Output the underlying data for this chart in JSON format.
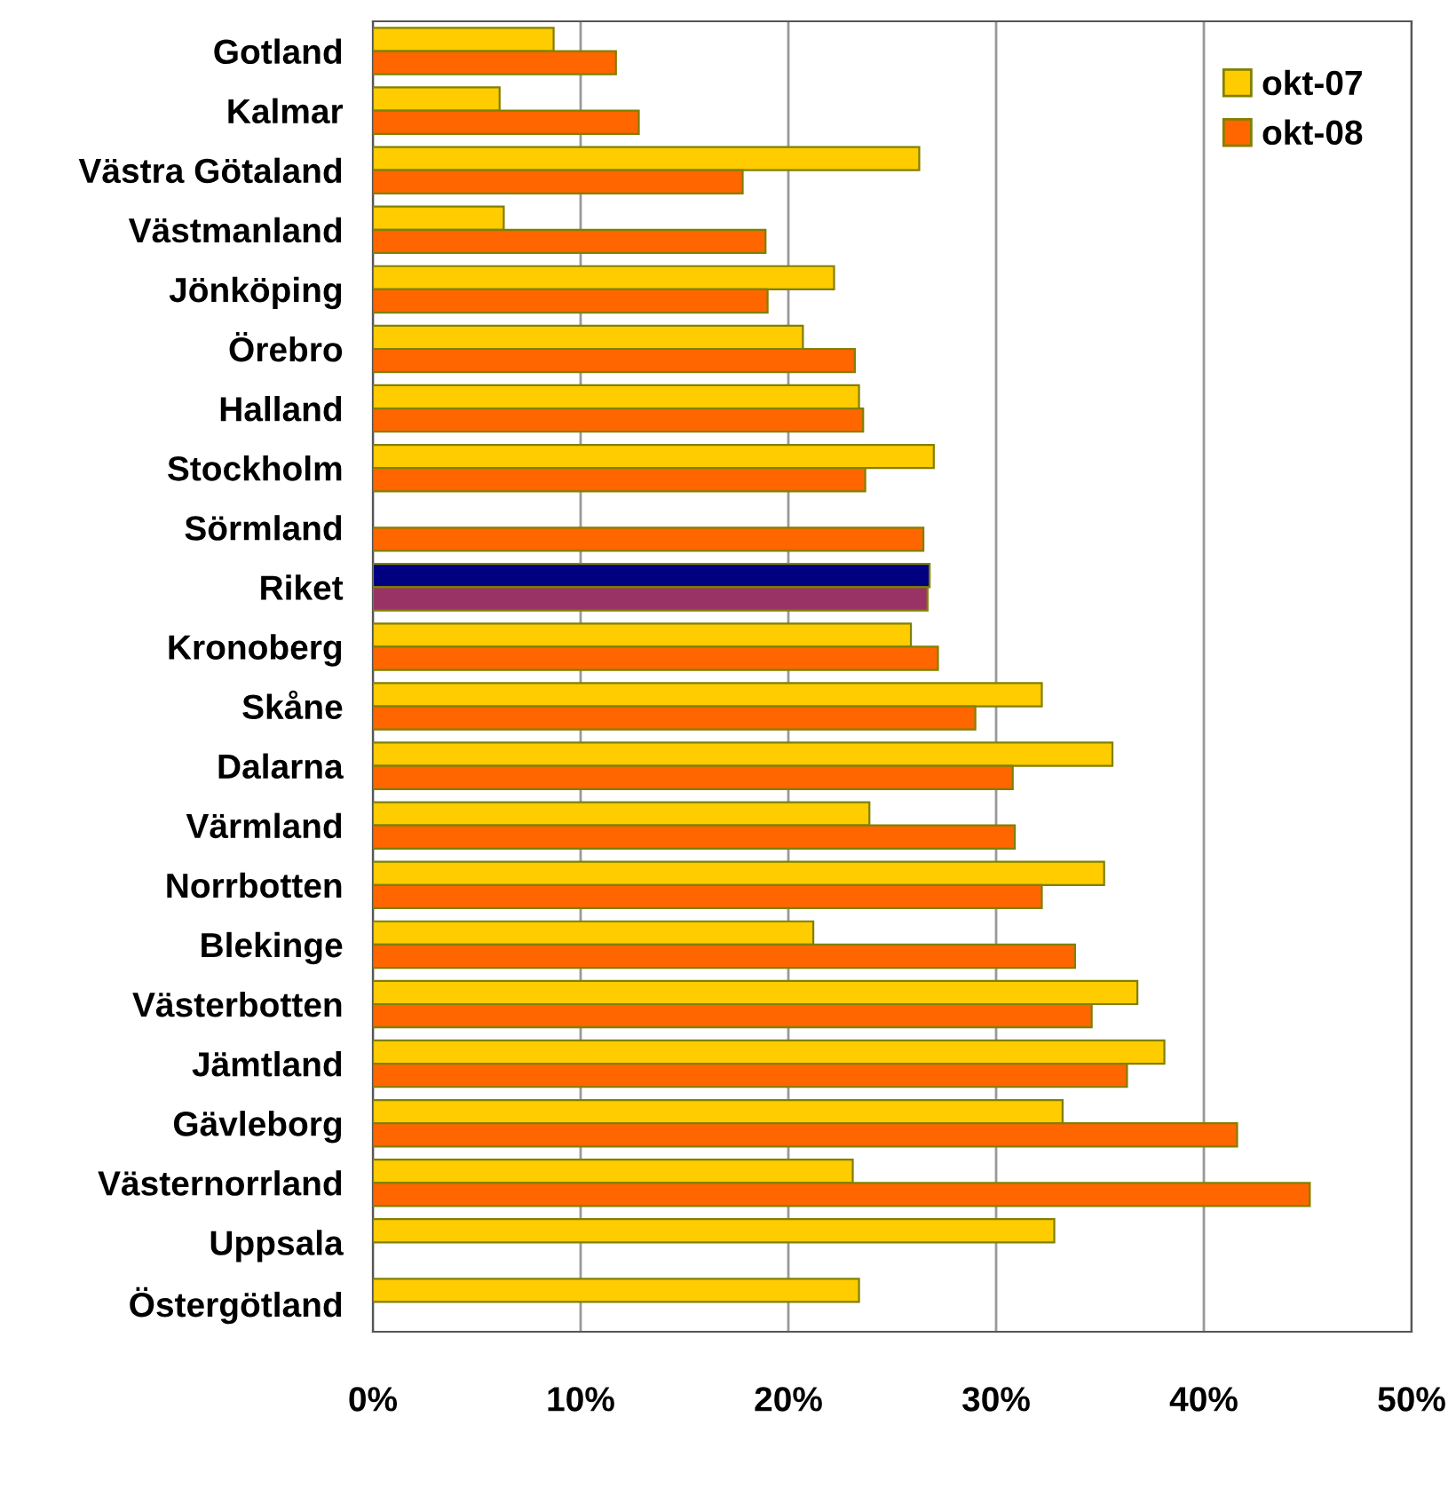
{
  "chart_data": {
    "type": "bar",
    "orientation": "horizontal",
    "categories": [
      "Gotland",
      "Kalmar",
      "Västra Götaland",
      "Västmanland",
      "Jönköping",
      "Örebro",
      "Halland",
      "Stockholm",
      "Sörmland",
      "Riket",
      "Kronoberg",
      "Skåne",
      "Dalarna",
      "Värmland",
      "Norrbotten",
      "Blekinge",
      "Västerbotten",
      "Jämtland",
      "Gävleborg",
      "Västernorrland",
      "Uppsala",
      "Östergötland"
    ],
    "series": [
      {
        "name": "okt-07",
        "color": "#ffcc00",
        "colors": [
          "#ffcc00",
          "#ffcc00",
          "#ffcc00",
          "#ffcc00",
          "#ffcc00",
          "#ffcc00",
          "#ffcc00",
          "#ffcc00",
          "#ffcc00",
          "#000080",
          "#ffcc00",
          "#ffcc00",
          "#ffcc00",
          "#ffcc00",
          "#ffcc00",
          "#ffcc00",
          "#ffcc00",
          "#ffcc00",
          "#ffcc00",
          "#ffcc00",
          "#ffcc00",
          "#ffcc00"
        ],
        "values": [
          8.7,
          6.1,
          26.3,
          6.3,
          22.2,
          20.7,
          23.4,
          27.0,
          null,
          26.8,
          25.9,
          32.2,
          35.6,
          23.9,
          35.2,
          21.2,
          36.8,
          38.1,
          33.2,
          23.1,
          32.8,
          23.4
        ]
      },
      {
        "name": "okt-08",
        "color": "#ff6600",
        "colors": [
          "#ff6600",
          "#ff6600",
          "#ff6600",
          "#ff6600",
          "#ff6600",
          "#ff6600",
          "#ff6600",
          "#ff6600",
          "#ff6600",
          "#993366",
          "#ff6600",
          "#ff6600",
          "#ff6600",
          "#ff6600",
          "#ff6600",
          "#ff6600",
          "#ff6600",
          "#ff6600",
          "#ff6600",
          "#ff6600",
          "#ff6600",
          "#ff6600"
        ],
        "values": [
          11.7,
          12.8,
          17.8,
          18.9,
          19.0,
          23.2,
          23.6,
          23.7,
          26.5,
          26.7,
          27.2,
          29.0,
          30.8,
          30.9,
          32.2,
          33.8,
          34.6,
          36.3,
          41.6,
          45.1,
          null,
          null
        ]
      }
    ],
    "xlim": [
      0,
      50
    ],
    "xticks": [
      {
        "value": 0,
        "label": "0%"
      },
      {
        "value": 10,
        "label": "10%"
      },
      {
        "value": 20,
        "label": "20%"
      },
      {
        "value": 30,
        "label": "30%"
      },
      {
        "value": 40,
        "label": "40%"
      },
      {
        "value": 50,
        "label": "50%"
      }
    ],
    "grid": "x",
    "legend": "top right"
  }
}
